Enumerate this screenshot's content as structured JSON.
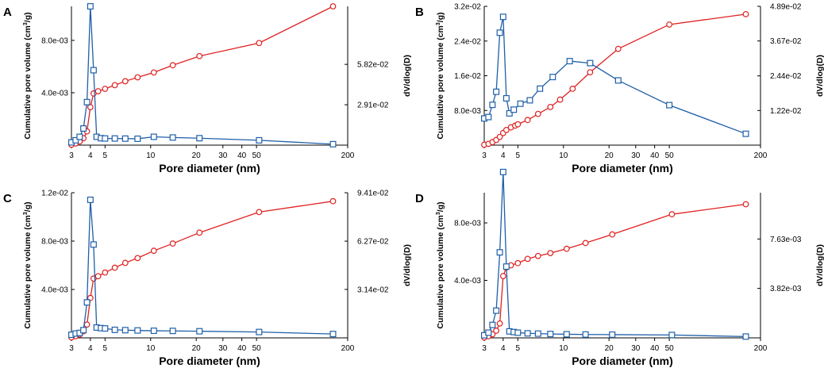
{
  "colors": {
    "cumulative": "#e02020",
    "dvdlogd": "#1f5fa8",
    "axis": "#000000"
  },
  "chart_data": [
    {
      "panel": "A",
      "type": "line",
      "xscale": "log",
      "xlim": [
        3,
        200
      ],
      "xticks": [
        3,
        4,
        5,
        10,
        20,
        30,
        40,
        50,
        200
      ],
      "xticklabels": [
        "3",
        "4",
        "5",
        "10",
        "20",
        "30",
        "40",
        "50",
        "200"
      ],
      "xlabel": "Pore diameter (nm)",
      "ylabel_left": "Cumulative pore volume (cm",
      "ylabel_left_sup": "3",
      "ylabel_left_end": "/g)",
      "ylabel_right": "dV/dlog(D)",
      "ylim_left": [
        0,
        0.0106
      ],
      "yticks_left": [
        0.004,
        0.008
      ],
      "yticklabels_left": [
        "4.0e-03",
        "8.0e-03"
      ],
      "ylim_right": [
        0,
        0.1
      ],
      "yticks_right": [
        0.0291,
        0.0582
      ],
      "yticklabels_right": [
        "2.91e-02",
        "5.82e-02"
      ],
      "series": [
        {
          "name": "Cumulative pore volume",
          "axis": "left",
          "marker": "circle",
          "x": [
            3.0,
            3.2,
            3.4,
            3.6,
            3.8,
            4.0,
            4.2,
            4.5,
            5.0,
            5.8,
            6.8,
            8.2,
            10.5,
            14,
            21,
            52,
            160
          ],
          "y": [
            3e-05,
            0.00013,
            0.00028,
            0.00053,
            0.00105,
            0.0029,
            0.00395,
            0.00412,
            0.0043,
            0.00458,
            0.00488,
            0.00518,
            0.00555,
            0.0061,
            0.0068,
            0.0078,
            0.0106
          ]
        },
        {
          "name": "dV/dlog(D)",
          "axis": "right",
          "marker": "square",
          "x": [
            3.0,
            3.2,
            3.4,
            3.6,
            3.8,
            4.0,
            4.2,
            4.4,
            4.7,
            5.0,
            5.8,
            6.8,
            8.2,
            10.5,
            14,
            21,
            52,
            160
          ],
          "y": [
            0.002,
            0.0035,
            0.006,
            0.012,
            0.031,
            0.1,
            0.054,
            0.006,
            0.005,
            0.0048,
            0.0048,
            0.0047,
            0.0046,
            0.006,
            0.0055,
            0.005,
            0.0035,
            0.0007
          ]
        }
      ]
    },
    {
      "panel": "B",
      "type": "line",
      "xscale": "log",
      "xlim": [
        3,
        200
      ],
      "xticks": [
        3,
        4,
        5,
        10,
        20,
        30,
        40,
        50,
        200
      ],
      "xticklabels": [
        "3",
        "4",
        "5",
        "10",
        "20",
        "30",
        "40",
        "50",
        "200"
      ],
      "xlabel": "Pore diameter (nm)",
      "ylabel_left": "Cumulative pore volume (cm",
      "ylabel_left_sup": "3",
      "ylabel_left_end": "/g)",
      "ylabel_right": "dV/dlog(D)",
      "ylim_left": [
        0,
        0.032
      ],
      "yticks_left": [
        0.008,
        0.016,
        0.024,
        0.032
      ],
      "yticklabels_left": [
        "8.0e-03",
        "1.6e-02",
        "2.4e-02",
        "3.2e-02"
      ],
      "ylim_right": [
        0,
        0.0489
      ],
      "yticks_right": [
        0.0122,
        0.0244,
        0.0367,
        0.0489
      ],
      "yticklabels_right": [
        "1.22e-02",
        "2.44e-02",
        "3.67e-02",
        "4.89e-02"
      ],
      "series": [
        {
          "name": "Cumulative pore volume",
          "axis": "left",
          "marker": "circle",
          "x": [
            3.0,
            3.2,
            3.4,
            3.6,
            3.8,
            4.0,
            4.2,
            4.5,
            4.8,
            5.0,
            5.8,
            6.8,
            8.2,
            9.5,
            11.5,
            15,
            23,
            50,
            160
          ],
          "y": [
            0.0001,
            0.0003,
            0.0007,
            0.0012,
            0.0019,
            0.0028,
            0.0035,
            0.0041,
            0.0045,
            0.0048,
            0.0058,
            0.0072,
            0.0088,
            0.0105,
            0.013,
            0.0168,
            0.0222,
            0.0278,
            0.0302
          ]
        },
        {
          "name": "dV/dlog(D)",
          "axis": "right",
          "marker": "square",
          "x": [
            3.0,
            3.2,
            3.4,
            3.6,
            3.8,
            4.0,
            4.2,
            4.4,
            4.7,
            5.2,
            6.0,
            7.0,
            8.5,
            11,
            15,
            23,
            50,
            160
          ],
          "y": [
            0.0094,
            0.0099,
            0.0142,
            0.0188,
            0.0396,
            0.0452,
            0.0165,
            0.0112,
            0.0125,
            0.0146,
            0.0158,
            0.0199,
            0.024,
            0.0296,
            0.0289,
            0.0228,
            0.0141,
            0.004
          ]
        }
      ]
    },
    {
      "panel": "C",
      "type": "line",
      "xscale": "log",
      "xlim": [
        3,
        200
      ],
      "xticks": [
        3,
        4,
        5,
        10,
        20,
        30,
        40,
        50,
        200
      ],
      "xticklabels": [
        "3",
        "4",
        "5",
        "10",
        "20",
        "30",
        "40",
        "50",
        "200"
      ],
      "xlabel": "Pore diameter (nm)",
      "ylabel_left": "Cumulative pore volume (cm",
      "ylabel_left_sup": "3",
      "ylabel_left_end": "/g)",
      "ylabel_right": "dV/dlog(D)",
      "ylim_left": [
        0,
        0.012
      ],
      "yticks_left": [
        0.004,
        0.008,
        0.012
      ],
      "yticklabels_left": [
        "4.0e-03",
        "8.0e-03",
        "1.2e-02"
      ],
      "ylim_right": [
        0,
        0.0941
      ],
      "yticks_right": [
        0.0314,
        0.0627,
        0.0941
      ],
      "yticklabels_right": [
        "3.14e-02",
        "6.27e-02",
        "9.41e-02"
      ],
      "series": [
        {
          "name": "Cumulative pore volume",
          "axis": "left",
          "marker": "circle",
          "x": [
            3.0,
            3.2,
            3.4,
            3.6,
            3.8,
            4.0,
            4.2,
            4.5,
            5.0,
            5.8,
            6.8,
            8.2,
            10.5,
            14,
            21,
            52,
            160
          ],
          "y": [
            4e-05,
            0.00014,
            0.00028,
            0.00055,
            0.0011,
            0.0033,
            0.0049,
            0.0051,
            0.0054,
            0.0058,
            0.0062,
            0.0066,
            0.0072,
            0.0078,
            0.0087,
            0.0104,
            0.0113
          ]
        },
        {
          "name": "dV/dlog(D)",
          "axis": "right",
          "marker": "square",
          "x": [
            3.0,
            3.2,
            3.4,
            3.6,
            3.8,
            4.0,
            4.2,
            4.4,
            4.7,
            5.0,
            5.8,
            6.8,
            8.2,
            10.5,
            14,
            21,
            52,
            160
          ],
          "y": [
            0.002,
            0.0028,
            0.0032,
            0.005,
            0.023,
            0.0895,
            0.0605,
            0.0067,
            0.0063,
            0.0061,
            0.0052,
            0.005,
            0.0048,
            0.0046,
            0.0045,
            0.0043,
            0.0038,
            0.0025
          ]
        }
      ]
    },
    {
      "panel": "D",
      "type": "line",
      "xscale": "log",
      "xlim": [
        3,
        200
      ],
      "xticks": [
        3,
        4,
        5,
        10,
        20,
        30,
        40,
        50,
        200
      ],
      "xticklabels": [
        "3",
        "4",
        "5",
        "10",
        "20",
        "30",
        "40",
        "50",
        "200"
      ],
      "xlabel": "Pore diameter (nm)",
      "ylabel_left": "Cumulative pore volume (cm",
      "ylabel_left_sup": "3",
      "ylabel_left_end": "/g)",
      "ylabel_right": "dV/dlog(D)",
      "ylim_left": [
        0,
        0.0101
      ],
      "yticks_left": [
        0.004,
        0.008
      ],
      "yticklabels_left": [
        "4.0e-03",
        "8.0e-03"
      ],
      "ylim_right": [
        0,
        0.0112
      ],
      "yticks_right": [
        0.00382,
        0.00763
      ],
      "yticklabels_right": [
        "3.82e-03",
        "7.63e-03"
      ],
      "series": [
        {
          "name": "Cumulative pore volume",
          "axis": "left",
          "marker": "circle",
          "x": [
            3.0,
            3.2,
            3.4,
            3.6,
            3.8,
            4.0,
            4.2,
            4.5,
            5.0,
            5.8,
            6.8,
            8.2,
            10.5,
            14,
            21,
            52,
            160
          ],
          "y": [
            3e-05,
            0.00012,
            0.00025,
            0.0005,
            0.001,
            0.0043,
            0.0049,
            0.00505,
            0.0052,
            0.0055,
            0.0057,
            0.0059,
            0.0062,
            0.0066,
            0.0072,
            0.0086,
            0.0093
          ]
        },
        {
          "name": "dV/dlog(D)",
          "axis": "right",
          "marker": "square",
          "x": [
            3.0,
            3.2,
            3.4,
            3.6,
            3.8,
            4.0,
            4.2,
            4.4,
            4.7,
            5.0,
            5.8,
            6.8,
            8.2,
            10.5,
            14,
            21,
            52,
            160
          ],
          "y": [
            0.0002,
            0.0004,
            0.001,
            0.0021,
            0.0066,
            0.0128,
            0.0055,
            0.0005,
            0.00045,
            0.0004,
            0.00035,
            0.00033,
            0.0003,
            0.00028,
            0.00026,
            0.00025,
            0.00022,
            0.0001
          ]
        }
      ]
    }
  ]
}
